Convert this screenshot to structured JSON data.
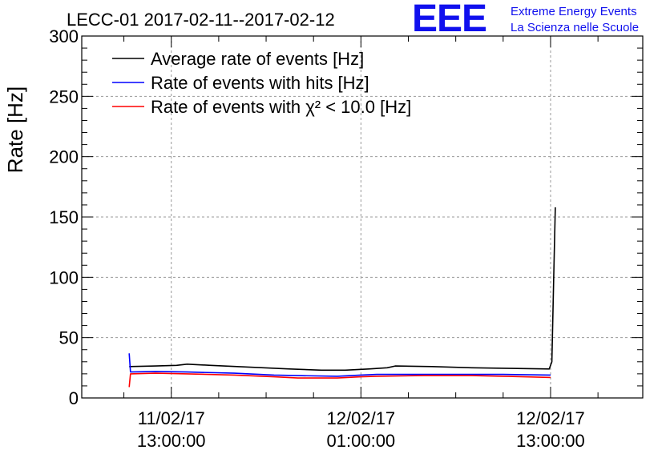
{
  "chart_data": {
    "type": "line",
    "title": "LECC-01 2017-02-11--2017-02-12",
    "xlabel": "",
    "ylabel": "Rate [Hz]",
    "ylim": [
      0,
      300
    ],
    "xlim": [
      "2017-02-11 07:20",
      "2017-02-12 18:50"
    ],
    "yticks": [
      0,
      50,
      100,
      150,
      200,
      250,
      300
    ],
    "xticks": [
      {
        "date": "11/02/17",
        "time": "13:00:00",
        "x": "2017-02-11 13:00"
      },
      {
        "date": "12/02/17",
        "time": "01:00:00",
        "x": "2017-02-12 01:00"
      },
      {
        "date": "12/02/17",
        "time": "13:00:00",
        "x": "2017-02-12 13:00"
      }
    ],
    "grid": true,
    "legend_position": "top-left",
    "series": [
      {
        "name": "Average rate of events [Hz]",
        "color": "#000000",
        "points": [
          [
            "2017-02-11 10:20",
            26.0
          ],
          [
            "2017-02-11 12:00",
            26.5
          ],
          [
            "2017-02-11 13:20",
            27.0
          ],
          [
            "2017-02-11 14:00",
            28.0
          ],
          [
            "2017-02-11 15:30",
            27.0
          ],
          [
            "2017-02-11 18:00",
            25.5
          ],
          [
            "2017-02-11 20:30",
            24.0
          ],
          [
            "2017-02-11 22:30",
            23.0
          ],
          [
            "2017-02-12 00:00",
            23.0
          ],
          [
            "2017-02-12 01:30",
            24.0
          ],
          [
            "2017-02-12 02:40",
            25.0
          ],
          [
            "2017-02-12 03:10",
            26.5
          ],
          [
            "2017-02-12 05:30",
            26.0
          ],
          [
            "2017-02-12 08:00",
            25.0
          ],
          [
            "2017-02-12 10:30",
            24.5
          ],
          [
            "2017-02-12 12:55",
            24.0
          ],
          [
            "2017-02-12 13:05",
            30.0
          ],
          [
            "2017-02-12 13:12",
            100.0
          ],
          [
            "2017-02-12 13:18",
            158.0
          ]
        ]
      },
      {
        "name": "Rate of events with hits [Hz]",
        "color": "#0000ff",
        "points": [
          [
            "2017-02-11 10:20",
            37.0
          ],
          [
            "2017-02-11 10:25",
            21.5
          ],
          [
            "2017-02-11 12:00",
            22.0
          ],
          [
            "2017-02-11 14:00",
            21.5
          ],
          [
            "2017-02-11 17:00",
            20.5
          ],
          [
            "2017-02-11 19:30",
            19.0
          ],
          [
            "2017-02-11 21:00",
            18.5
          ],
          [
            "2017-02-11 23:30",
            18.0
          ],
          [
            "2017-02-12 01:00",
            19.0
          ],
          [
            "2017-02-12 02:00",
            19.5
          ],
          [
            "2017-02-12 05:00",
            19.5
          ],
          [
            "2017-02-12 08:00",
            19.5
          ],
          [
            "2017-02-12 10:00",
            19.5
          ],
          [
            "2017-02-12 13:00",
            19.0
          ]
        ]
      },
      {
        "name": "Rate of events with χ² < 10.0 [Hz]",
        "color": "#ff0000",
        "points": [
          [
            "2017-02-11 10:20",
            9.0
          ],
          [
            "2017-02-11 10:25",
            20.0
          ],
          [
            "2017-02-11 12:00",
            20.5
          ],
          [
            "2017-02-11 14:00",
            20.0
          ],
          [
            "2017-02-11 17:00",
            19.0
          ],
          [
            "2017-02-11 19:30",
            17.5
          ],
          [
            "2017-02-11 21:00",
            16.5
          ],
          [
            "2017-02-11 23:30",
            16.5
          ],
          [
            "2017-02-12 01:00",
            17.5
          ],
          [
            "2017-02-12 02:00",
            18.0
          ],
          [
            "2017-02-12 05:00",
            18.5
          ],
          [
            "2017-02-12 08:00",
            18.5
          ],
          [
            "2017-02-12 10:00",
            18.0
          ],
          [
            "2017-02-12 13:00",
            17.0
          ]
        ]
      }
    ]
  },
  "branding": {
    "logo": "EEE",
    "line1": "Extreme Energy Events",
    "line2": "La Scienza nelle Scuole",
    "color": "#1010ee"
  }
}
